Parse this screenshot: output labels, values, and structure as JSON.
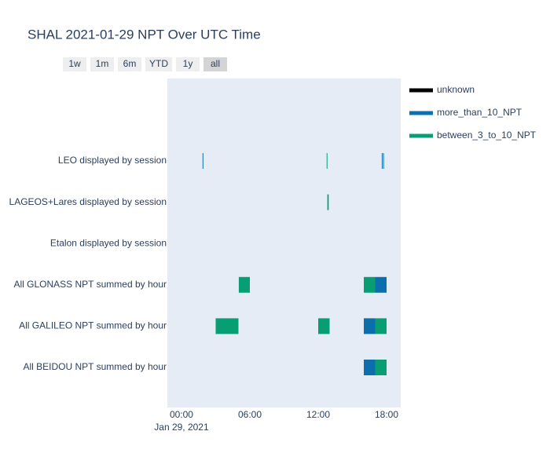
{
  "chart_data": {
    "type": "timeline",
    "title": "SHAL 2021-01-29 NPT Over UTC Time",
    "range_buttons": [
      "1w",
      "1m",
      "6m",
      "YTD",
      "1y",
      "all"
    ],
    "categories": [
      "LEO displayed by session",
      "LAGEOS+Lares displayed by session",
      "Etalon displayed by session",
      "All GLONASS NPT summed by hour",
      "All GALILEO NPT summed by hour",
      "All BEIDOU NPT summed by hour"
    ],
    "xlim": [
      -1.24,
      19.24
    ],
    "xticks": [
      {
        "value": 0,
        "label": "00:00"
      },
      {
        "value": 6,
        "label": "06:00"
      },
      {
        "value": 12,
        "label": "12:00"
      },
      {
        "value": 18,
        "label": "18:00"
      }
    ],
    "x_date_label": "Jan 29, 2021",
    "series": [
      {
        "name": "unknown",
        "color": "#000000",
        "category": [],
        "start": [],
        "end": []
      },
      {
        "name": "more_than_10_NPT",
        "color": "#0d6eae",
        "category": [
          "LEO displayed by session",
          "LEO displayed by session",
          "LEO displayed by session",
          "All GLONASS NPT summed by hour",
          "All GALILEO NPT summed by hour",
          "All BEIDOU NPT summed by hour"
        ],
        "start": [
          1.85,
          17.58,
          17.7,
          17,
          16,
          16
        ],
        "end": [
          1.92,
          17.63,
          17.75,
          18,
          17,
          17
        ]
      },
      {
        "name": "between_3_to_10_NPT",
        "color": "#079e74",
        "category": [
          "LEO displayed by session",
          "LAGEOS+Lares displayed by session",
          "All GLONASS NPT summed by hour",
          "All GLONASS NPT summed by hour",
          "All GALILEO NPT summed by hour",
          "All GALILEO NPT summed by hour",
          "All GALILEO NPT summed by hour",
          "All BEIDOU NPT summed by hour"
        ],
        "start": [
          12.74,
          12.8,
          5.03,
          16,
          3,
          12,
          17,
          17
        ],
        "end": [
          12.79,
          12.92,
          6,
          17,
          5,
          13,
          18,
          18
        ]
      }
    ]
  }
}
